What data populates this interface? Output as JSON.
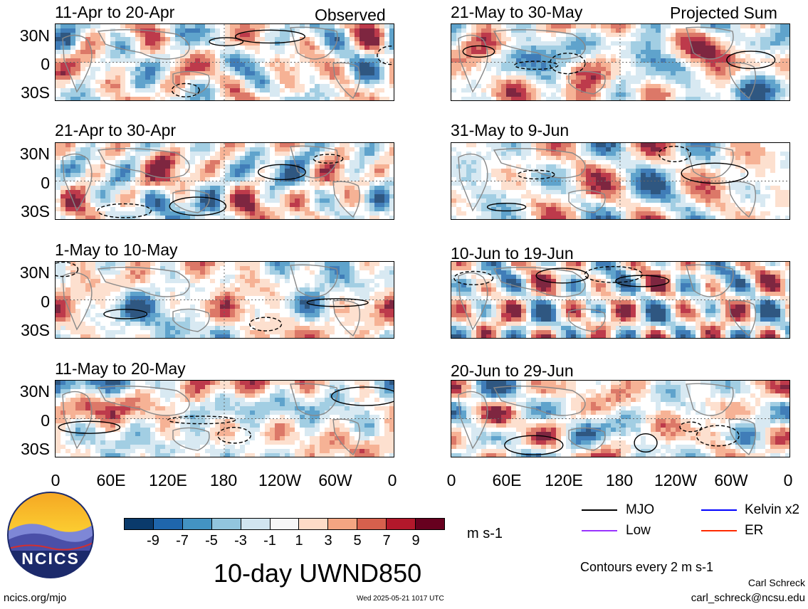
{
  "headers": {
    "left": "Observed",
    "right": "Projected Sum"
  },
  "panels": [
    {
      "title": "11-Apr to 20-Apr",
      "seed": 3
    },
    {
      "title": "21-Apr to 30-Apr",
      "seed": 7
    },
    {
      "title": "1-May to 10-May",
      "seed": 11
    },
    {
      "title": "11-May to 20-May",
      "seed": 13
    },
    {
      "title": "21-May to 30-May",
      "seed": 17
    },
    {
      "title": "31-May to 9-Jun",
      "seed": 19
    },
    {
      "title": "10-Jun to 19-Jun",
      "seed": 23
    },
    {
      "title": "20-Jun to 29-Jun",
      "seed": 29
    }
  ],
  "lat_labels": [
    "30N",
    "0",
    "30S"
  ],
  "lon_labels": [
    "0",
    "60E",
    "120E",
    "180",
    "120W",
    "60W",
    "0"
  ],
  "colorbar": {
    "colors": [
      "#0a3a6b",
      "#1f66ac",
      "#4393c3",
      "#92c5de",
      "#d1e5f0",
      "#f7f7f7",
      "#fddbc7",
      "#f4a582",
      "#d6604d",
      "#b2182b",
      "#67001f"
    ],
    "labels": [
      "-9",
      "-7",
      "-5",
      "-3",
      "-1",
      "1",
      "3",
      "5",
      "7",
      "9"
    ],
    "units": "m s-1"
  },
  "legend": {
    "items": [
      {
        "label": "MJO",
        "color": "#000000"
      },
      {
        "label": "Kelvin x2",
        "color": "#0000ff"
      },
      {
        "label": "Low",
        "color": "#9933ff"
      },
      {
        "label": "ER",
        "color": "#ff2a00"
      }
    ],
    "contour_note": "Contours every 2 m s-1"
  },
  "main_title": "10-day UWND850",
  "logo_text": "NCICS",
  "footer": {
    "url": "ncics.org/mjo",
    "timestamp": "Wed 2025-05-21 1017 UTC",
    "author": "Carl Schreck",
    "email": "carl_schreck@ncsu.edu"
  }
}
